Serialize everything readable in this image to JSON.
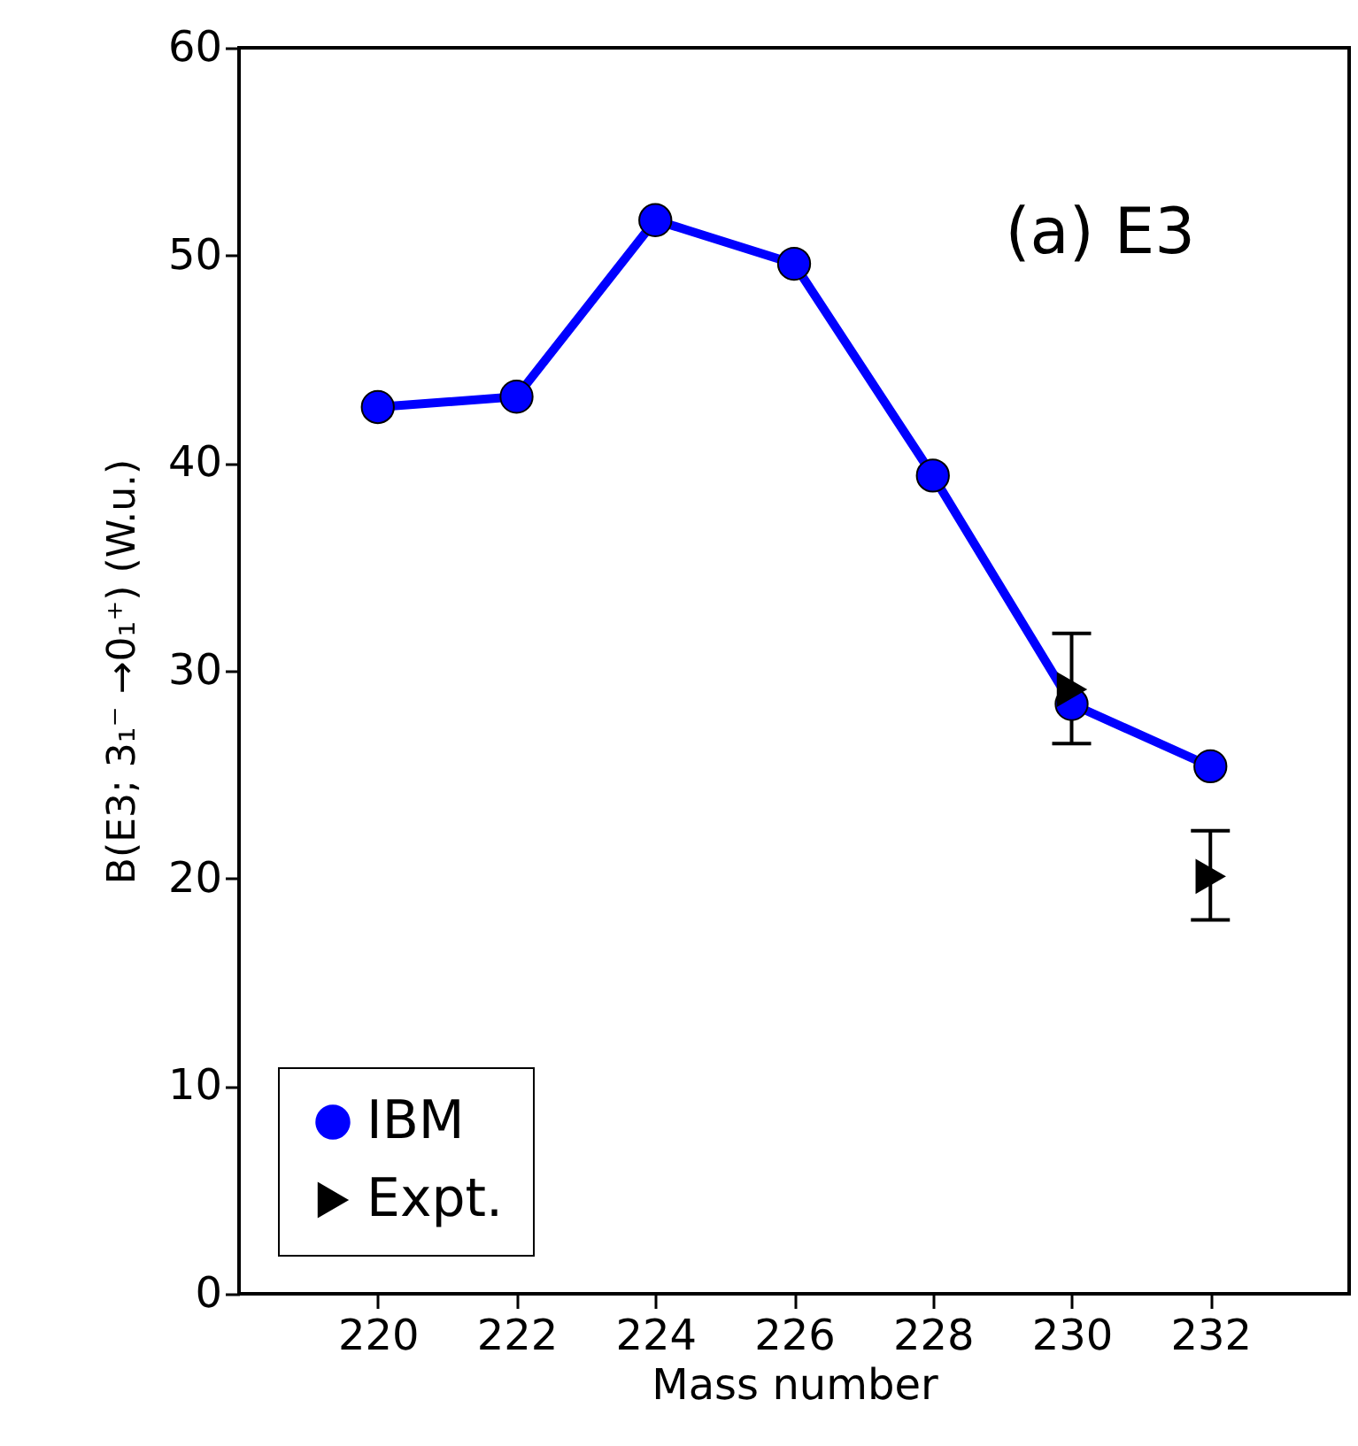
{
  "chart_data": {
    "type": "line",
    "xlabel": "Mass number",
    "ylabel": "B(E3; 3₁⁻ →0₁⁺) (W.u.)",
    "annotations": [
      "(a) E3"
    ],
    "x": [
      220,
      222,
      224,
      226,
      228,
      230,
      232
    ],
    "series": [
      {
        "name": "IBM",
        "type": "line",
        "color": "#0000ff",
        "marker": "circle",
        "values": [
          42.7,
          43.2,
          51.7,
          49.6,
          39.4,
          28.4,
          25.4
        ]
      },
      {
        "name": "Expt.",
        "type": "scatter",
        "color": "#000000",
        "marker": "triangle",
        "x": [
          230,
          232
        ],
        "values": [
          29.1,
          20.1
        ],
        "errors": [
          [
            26.5,
            31.8
          ],
          [
            18.0,
            22.3
          ]
        ]
      }
    ],
    "xlim": [
      218,
      234
    ],
    "xticks": [
      220,
      222,
      224,
      226,
      228,
      230,
      232
    ],
    "ylim": [
      0,
      60
    ],
    "yticks": [
      0,
      10,
      20,
      30,
      40,
      50,
      60
    ],
    "grid": false,
    "legend": "bottom left"
  }
}
